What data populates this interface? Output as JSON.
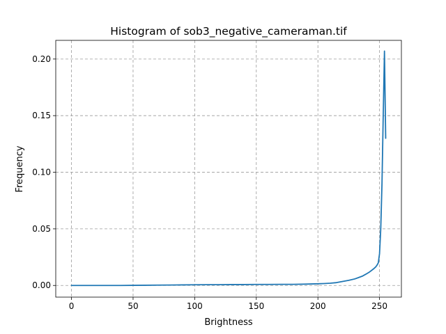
{
  "chart_data": {
    "type": "line",
    "title": "Histogram of sob3_negative_cameraman.tif",
    "xlabel": "Brightness",
    "ylabel": "Frequency",
    "xlim": [
      -12.75,
      267.75
    ],
    "ylim": [
      -0.0103,
      0.2165
    ],
    "x_ticks": [
      0,
      50,
      100,
      150,
      200,
      250
    ],
    "x_tick_labels": [
      "0",
      "50",
      "100",
      "150",
      "200",
      "250"
    ],
    "y_ticks": [
      0.0,
      0.05,
      0.1,
      0.15,
      0.2
    ],
    "y_tick_labels": [
      "0.00",
      "0.05",
      "0.10",
      "0.15",
      "0.20"
    ],
    "grid": true,
    "series": [
      {
        "color": "#1f77b4",
        "x": [
          0,
          10,
          20,
          30,
          40,
          50,
          60,
          70,
          80,
          90,
          100,
          110,
          120,
          130,
          140,
          150,
          160,
          170,
          180,
          190,
          200,
          205,
          210,
          215,
          220,
          225,
          230,
          233,
          236,
          239,
          242,
          245,
          247,
          248,
          249,
          250,
          251,
          252,
          253,
          254,
          255
        ],
        "y": [
          0.0,
          0.0,
          0.0,
          0.0,
          0.0,
          0.0001,
          0.0002,
          0.0003,
          0.0004,
          0.0005,
          0.0006,
          0.0007,
          0.0007,
          0.0008,
          0.0008,
          0.0009,
          0.0009,
          0.001,
          0.001,
          0.0012,
          0.0015,
          0.0017,
          0.002,
          0.0025,
          0.0035,
          0.0045,
          0.0058,
          0.007,
          0.0082,
          0.01,
          0.012,
          0.0145,
          0.0165,
          0.018,
          0.02,
          0.028,
          0.05,
          0.09,
          0.15,
          0.207,
          0.13
        ]
      }
    ]
  }
}
